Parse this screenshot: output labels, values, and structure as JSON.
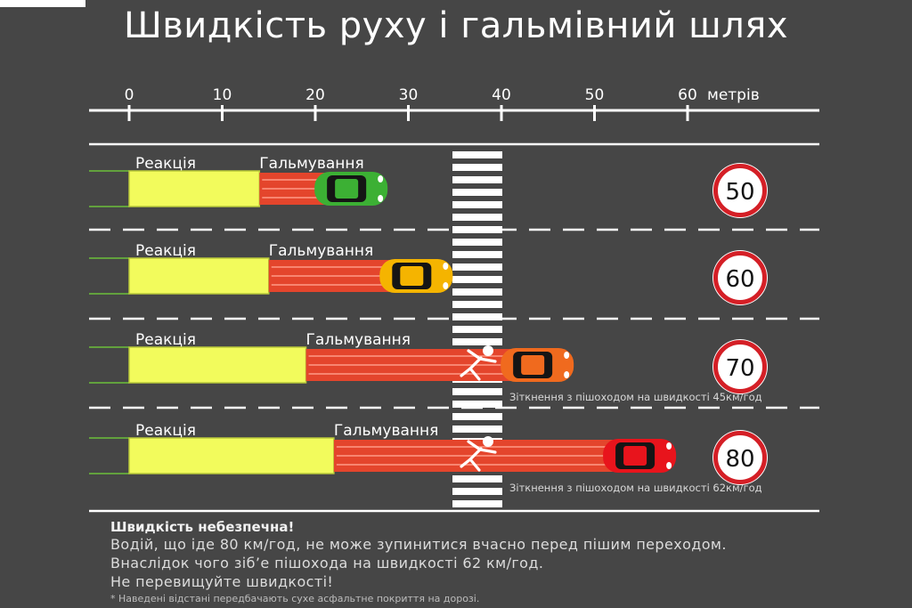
{
  "title": "Швидкість руху і гальмівний шлях",
  "scale": {
    "ticks": [
      0,
      10,
      20,
      30,
      40,
      50,
      60
    ],
    "unit_label": "метрів",
    "max": 60
  },
  "crosswalk": {
    "start_m": 34.5,
    "end_m": 40
  },
  "labels": {
    "reaction": "Реакція",
    "braking": "Гальмування"
  },
  "lanes": [
    {
      "speed": "50",
      "reaction_m": 14,
      "braking_m": 10,
      "stop_m": 27,
      "car_color": "#3cb034",
      "collision_text": ""
    },
    {
      "speed": "60",
      "reaction_m": 15,
      "braking_m": 15,
      "stop_m": 34,
      "car_color": "#f5b400",
      "collision_text": ""
    },
    {
      "speed": "70",
      "reaction_m": 19,
      "braking_m": 17,
      "stop_m": 47,
      "car_color": "#f06a1e",
      "collision_text": "Зіткнення з пішоходом на швидкості 45км/год"
    },
    {
      "speed": "80",
      "reaction_m": 22,
      "braking_m": 32,
      "stop_m": 58,
      "car_color": "#e8141c",
      "collision_text": "Зіткнення з пішоходом на швидкості 62км/год"
    }
  ],
  "colors": {
    "reaction": "#f2fb5c",
    "braking": "#e4452c",
    "sign_ring": "#d41f26"
  },
  "footer": {
    "heading": "Швидкість небезпечна!",
    "lines": [
      "Водій, що іде 80 км/год, не може зупинитися вчасно перед пішим переходом.",
      "Внаслідок чого зіб’е пішохода на швидкості 62 км/год.",
      "Не перевищуйте швидкості!"
    ],
    "note": "* Наведені відстані передбачають сухе асфальтне покриття на дорозі."
  }
}
